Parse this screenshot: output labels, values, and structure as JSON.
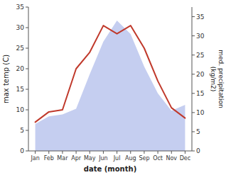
{
  "chart_data": {
    "type": "line",
    "xlabel": "date (month)",
    "ylabel": "max temp (C)",
    "y2label": "med. precipitation\n(kg/m2)",
    "categories": [
      "Jan",
      "Feb",
      "Mar",
      "Apr",
      "May",
      "Jun",
      "Jul",
      "Aug",
      "Sep",
      "Oct",
      "Nov",
      "Dec"
    ],
    "series": [
      {
        "type": "area",
        "axis": "y2",
        "color": "#c5cef0",
        "values": [
          7,
          9,
          9.5,
          11,
          20,
          28.5,
          34,
          30.5,
          22,
          15,
          10.5,
          12
        ]
      },
      {
        "type": "line",
        "color": "#c0392b",
        "values": [
          7,
          9.5,
          10,
          20,
          24,
          30.5,
          28.5,
          30.5,
          25,
          17,
          10.5,
          8
        ]
      }
    ],
    "ylim": [
      0,
      35
    ],
    "yticks": [
      0,
      5,
      10,
      15,
      20,
      25,
      30,
      35
    ],
    "y2lim": [
      0,
      37.5
    ],
    "y2ticks": [
      0,
      5,
      10,
      15,
      20,
      25,
      30,
      35
    ],
    "grid": false
  }
}
